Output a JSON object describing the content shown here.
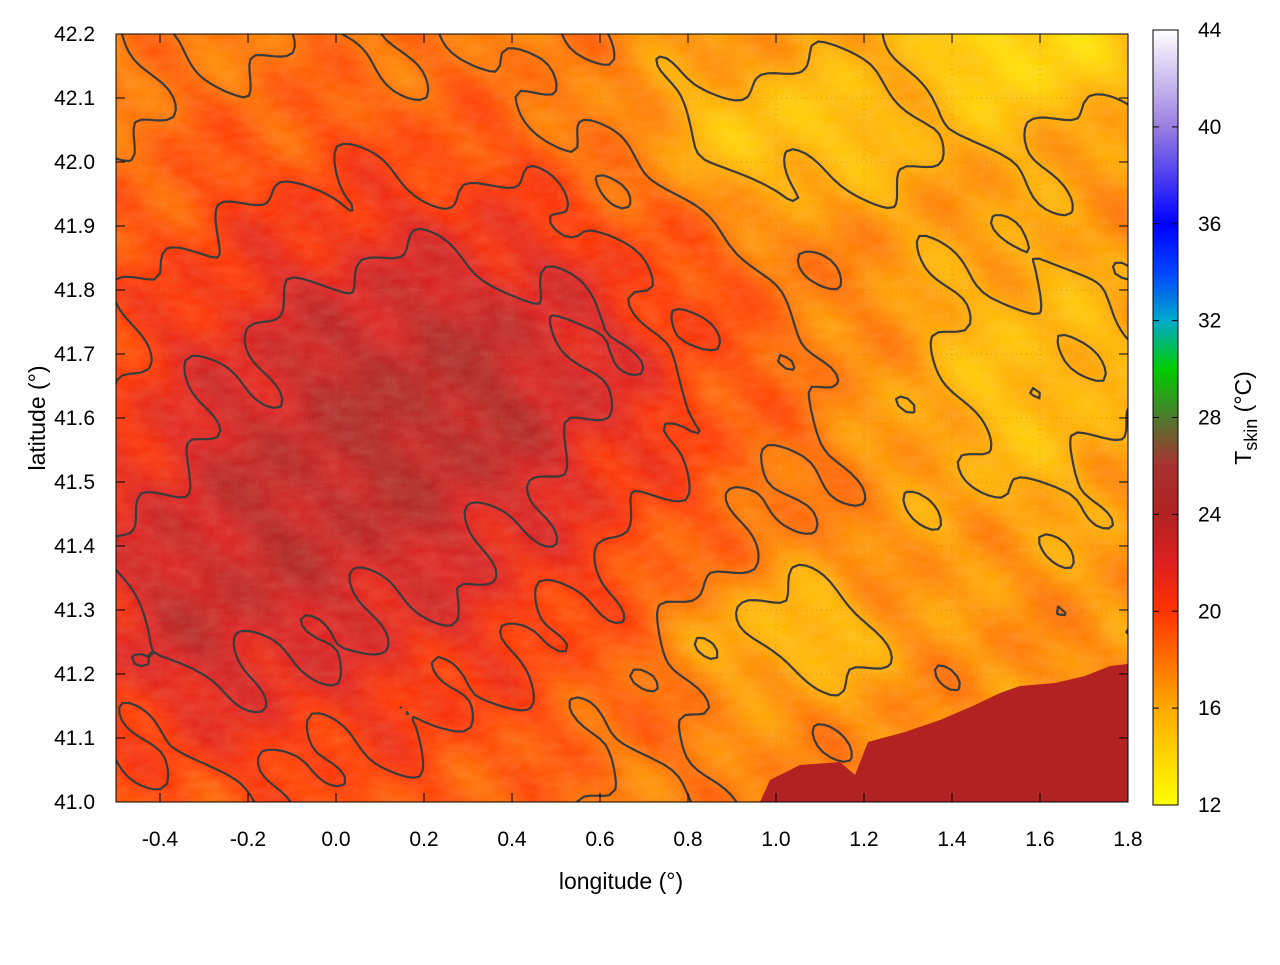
{
  "chart_data": {
    "type": "heatmap",
    "title": "",
    "xlabel": "longitude (°)",
    "ylabel": "latitude (°)",
    "xlim": [
      -0.5,
      1.8
    ],
    "ylim": [
      41.0,
      42.2
    ],
    "x_ticks": [
      -0.4,
      -0.2,
      0.0,
      0.2,
      0.4,
      0.6,
      0.8,
      1.0,
      1.2,
      1.4,
      1.6,
      1.8
    ],
    "x_tick_labels": [
      "-0.4",
      "-0.2",
      "0.0",
      "0.2",
      "0.4",
      "0.6",
      "0.8",
      "1.0",
      "1.2",
      "1.4",
      "1.6",
      "1.8"
    ],
    "y_ticks": [
      41.0,
      41.1,
      41.2,
      41.3,
      41.4,
      41.5,
      41.6,
      41.7,
      41.8,
      41.9,
      42.0,
      42.1,
      42.2
    ],
    "y_tick_labels": [
      "41.0",
      "41.1",
      "41.2",
      "41.3",
      "41.4",
      "41.5",
      "41.6",
      "41.7",
      "41.8",
      "41.9",
      "42.0",
      "42.1",
      "42.2"
    ],
    "grid": true,
    "contours": true,
    "colorbar": {
      "label_main": "T",
      "label_sub": "skin",
      "label_unit": " (°C)",
      "range": [
        12,
        44
      ],
      "ticks": [
        12,
        16,
        20,
        24,
        28,
        32,
        36,
        40,
        44
      ],
      "tick_labels": [
        "12",
        "16",
        "20",
        "24",
        "28",
        "32",
        "36",
        "40",
        "44"
      ],
      "palette": [
        [
          12,
          "#ffff00"
        ],
        [
          16,
          "#ffaa00"
        ],
        [
          20,
          "#ff3300"
        ],
        [
          22,
          "#dd1f1f"
        ],
        [
          24,
          "#b22222"
        ],
        [
          26,
          "#a83030"
        ],
        [
          28,
          "#4e7a2e"
        ],
        [
          30,
          "#00cc00"
        ],
        [
          32,
          "#00aacc"
        ],
        [
          34,
          "#0044ff"
        ],
        [
          36,
          "#0000ff"
        ],
        [
          40,
          "#9a7fe0"
        ],
        [
          44,
          "#ffffff"
        ]
      ]
    },
    "sea_value_approx": 25,
    "field_range_approx": [
      13,
      25
    ]
  }
}
